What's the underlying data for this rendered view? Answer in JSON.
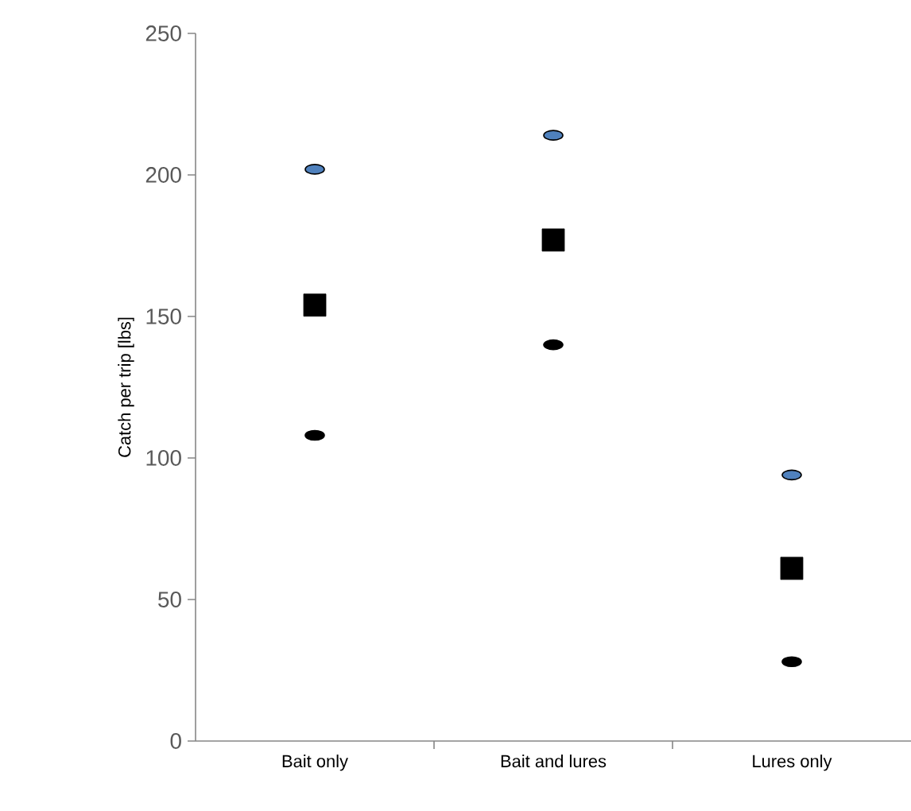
{
  "chart_data": {
    "type": "scatter",
    "ylabel": "Catch per trip [lbs]",
    "categories": [
      "Bait only",
      "Bait and lures",
      "Lures only"
    ],
    "series": [
      {
        "color": "#4f81bd",
        "marker": "circle",
        "values": [
          202,
          214,
          94
        ]
      },
      {
        "color": "#000000",
        "marker": "square",
        "values": [
          154,
          177,
          61
        ]
      },
      {
        "color": "#000000",
        "marker": "circle",
        "values": [
          108,
          140,
          28
        ]
      }
    ],
    "ylim": [
      0,
      250
    ],
    "yticks": [
      0,
      50,
      100,
      150,
      200,
      250
    ],
    "grid": false,
    "legend": false
  }
}
